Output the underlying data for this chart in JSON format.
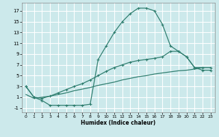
{
  "background_color": "#cce9eb",
  "grid_color": "#ffffff",
  "line_color": "#2e7d6e",
  "xlabel": "Humidex (Indice chaleur)",
  "xlim": [
    -0.5,
    23.5
  ],
  "ylim": [
    -1.8,
    18.5
  ],
  "xticks": [
    0,
    1,
    2,
    3,
    4,
    5,
    6,
    7,
    8,
    9,
    10,
    11,
    12,
    13,
    14,
    15,
    16,
    17,
    18,
    19,
    20,
    21,
    22,
    23
  ],
  "yticks": [
    -1,
    1,
    3,
    5,
    7,
    9,
    11,
    13,
    15,
    17
  ],
  "series1_x": [
    0,
    1,
    2,
    3,
    4,
    5,
    6,
    7,
    8,
    9,
    10,
    11,
    12,
    13,
    14,
    15,
    16,
    17,
    18,
    19,
    20,
    21,
    22,
    23
  ],
  "series1_y": [
    3,
    1,
    0.4,
    -0.5,
    -0.5,
    -0.5,
    -0.5,
    -0.5,
    -0.3,
    8,
    10.5,
    13,
    15,
    16.5,
    17.5,
    17.5,
    17,
    14.5,
    10.5,
    9.5,
    8.5,
    6.5,
    6.0,
    6.0
  ],
  "series2_x": [
    0,
    1,
    2,
    3,
    4,
    5,
    6,
    7,
    8,
    9,
    10,
    11,
    12,
    13,
    14,
    15,
    16,
    17,
    18,
    19,
    20,
    21,
    22,
    23
  ],
  "series2_y": [
    3,
    1,
    0.8,
    1.2,
    1.8,
    2.4,
    3.0,
    3.5,
    4.2,
    5.0,
    5.8,
    6.5,
    7.0,
    7.5,
    7.8,
    8.0,
    8.2,
    8.5,
    9.5,
    9.5,
    8.5,
    6.5,
    6.5,
    6.5
  ],
  "series3_x": [
    0,
    1,
    2,
    3,
    4,
    5,
    6,
    7,
    8,
    9,
    10,
    11,
    12,
    13,
    14,
    15,
    16,
    17,
    18,
    19,
    20,
    21,
    22,
    23
  ],
  "series3_y": [
    1.5,
    0.8,
    1.0,
    1.2,
    1.5,
    1.8,
    2.2,
    2.5,
    2.8,
    3.2,
    3.5,
    3.8,
    4.2,
    4.5,
    4.8,
    5.0,
    5.3,
    5.5,
    5.7,
    5.9,
    6.0,
    6.2,
    6.5,
    6.5
  ]
}
